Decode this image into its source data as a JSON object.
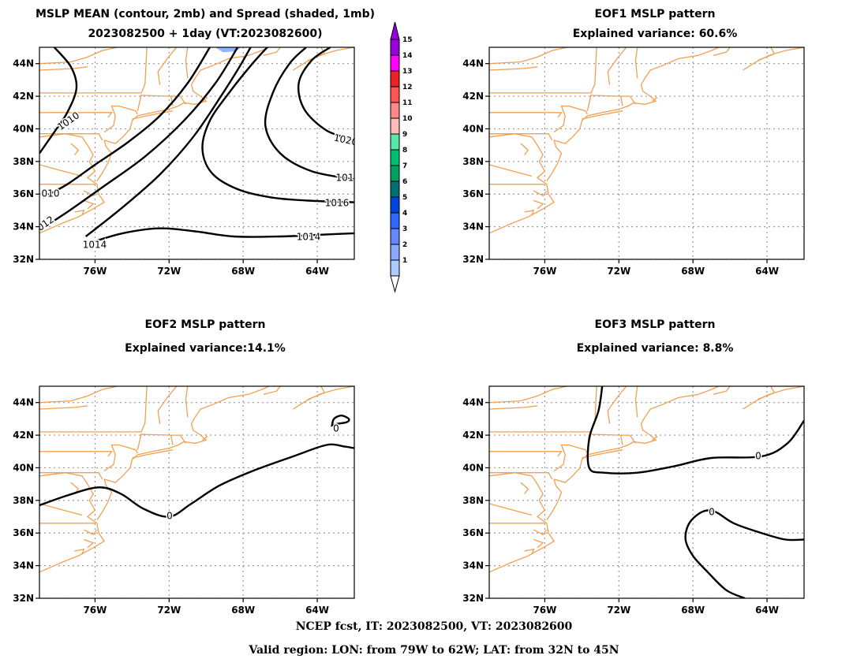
{
  "footer": {
    "line1": "NCEP fcst, IT: 2023082500, VT: 2023082600",
    "line2": "Valid region: LON: from 79W to 62W; LAT: from 32N to 45N"
  },
  "colors": {
    "coast": "#f0a050",
    "contour": "#000000",
    "grid": "#999999",
    "spread_shade": "#8ab8ff"
  },
  "colorbar": {
    "levels": [
      "1",
      "2",
      "3",
      "4",
      "5",
      "6",
      "7",
      "8",
      "9",
      "10",
      "11",
      "12",
      "13",
      "14",
      "15"
    ],
    "colors": [
      "#aaccff",
      "#88aaff",
      "#6688ff",
      "#3366ff",
      "#0044dd",
      "#007070",
      "#00a060",
      "#00c070",
      "#55e8a8",
      "#ffbbbb",
      "#ff8888",
      "#ff5555",
      "#ee2222",
      "#ff00ff",
      "#9900dd"
    ]
  },
  "chart_data": [
    {
      "type": "contour",
      "title": "MSLP MEAN (contour, 2mb) and Spread (shaded, 1mb)",
      "subtitle": "2023082500 + 1day (VT:2023082600)",
      "lon_range": [
        -79,
        -62
      ],
      "lat_range": [
        32,
        45
      ],
      "xticks": [
        "76W",
        "72W",
        "68W",
        "64W"
      ],
      "yticks": [
        "32N",
        "34N",
        "36N",
        "38N",
        "40N",
        "42N",
        "44N"
      ],
      "contour_labels": [
        "1010",
        "1020",
        "101",
        "010",
        "1016",
        "012",
        "1014",
        "1014"
      ],
      "contours": [
        {
          "level": 1010,
          "points": [
            [
              -79,
              38.5
            ],
            [
              -78.2,
              39.8
            ],
            [
              -77.5,
              41
            ],
            [
              -77,
              42.5
            ],
            [
              -77.3,
              43.8
            ],
            [
              -78.2,
              45
            ]
          ]
        },
        {
          "level": 1010,
          "points": [
            [
              -78.8,
              35.8
            ],
            [
              -77.5,
              36.6
            ],
            [
              -76,
              37.8
            ],
            [
              -74.2,
              39.2
            ],
            [
              -72.5,
              40.8
            ],
            [
              -71,
              42.8
            ],
            [
              -69.8,
              45
            ]
          ]
        },
        {
          "level": 1012,
          "points": [
            [
              -79,
              33.8
            ],
            [
              -77.5,
              34.9
            ],
            [
              -75.5,
              36.5
            ],
            [
              -73.3,
              38.3
            ],
            [
              -71.2,
              40.5
            ],
            [
              -69.5,
              42.8
            ],
            [
              -68.3,
              45
            ]
          ]
        },
        {
          "level": 1014,
          "points": [
            [
              -76.5,
              33.4
            ],
            [
              -74.5,
              35.2
            ],
            [
              -72.5,
              37.2
            ],
            [
              -70.7,
              39.5
            ],
            [
              -69.2,
              42
            ],
            [
              -68.2,
              43.8
            ],
            [
              -67.6,
              45
            ]
          ]
        },
        {
          "level": 1014,
          "points": [
            [
              -76.3,
              33
            ],
            [
              -74.5,
              33.6
            ],
            [
              -72.5,
              33.9
            ],
            [
              -70.5,
              33.7
            ],
            [
              -68.5,
              33.4
            ],
            [
              -66,
              33.4
            ],
            [
              -64,
              33.5
            ],
            [
              -62,
              33.6
            ]
          ]
        },
        {
          "level": 1016,
          "points": [
            [
              -62,
              35.5
            ],
            [
              -64.5,
              35.6
            ],
            [
              -66.5,
              35.8
            ],
            [
              -68.3,
              36.3
            ],
            [
              -69.7,
              37.3
            ],
            [
              -70.2,
              38.8
            ],
            [
              -69.8,
              40.5
            ],
            [
              -68.7,
              42.3
            ],
            [
              -67.5,
              44
            ],
            [
              -66.7,
              45
            ]
          ]
        },
        {
          "level": 1018,
          "points": [
            [
              -62,
              36.9
            ],
            [
              -64.3,
              37.4
            ],
            [
              -66,
              38.5
            ],
            [
              -66.8,
              40.2
            ],
            [
              -66.4,
              42.2
            ],
            [
              -65.5,
              44
            ],
            [
              -64.6,
              45
            ]
          ]
        },
        {
          "level": 1020,
          "points": [
            [
              -62.2,
              39.4
            ],
            [
              -63.5,
              39.9
            ],
            [
              -64.7,
              41.2
            ],
            [
              -65,
              42.8
            ],
            [
              -64.3,
              44.2
            ],
            [
              -63.3,
              45
            ]
          ]
        }
      ],
      "spread_shading": [
        {
          "level": 2,
          "points": [
            [
              -69.5,
              45
            ],
            [
              -69.1,
              44.7
            ],
            [
              -68.4,
              44.75
            ],
            [
              -68.1,
              45
            ]
          ]
        }
      ]
    },
    {
      "type": "contour",
      "title": "EOF1 MSLP pattern",
      "subtitle": "Explained variance: 60.6%",
      "lon_range": [
        -79,
        -62
      ],
      "lat_range": [
        32,
        45
      ],
      "xticks": [
        "76W",
        "72W",
        "68W",
        "64W"
      ],
      "yticks": [
        "32N",
        "34N",
        "36N",
        "38N",
        "40N",
        "42N",
        "44N"
      ],
      "contour_labels": [],
      "contours": []
    },
    {
      "type": "contour",
      "title": "EOF2 MSLP pattern",
      "subtitle": "Explained variance:14.1%",
      "lon_range": [
        -79,
        -62
      ],
      "lat_range": [
        32,
        45
      ],
      "xticks": [
        "76W",
        "72W",
        "68W",
        "64W"
      ],
      "yticks": [
        "32N",
        "34N",
        "36N",
        "38N",
        "40N",
        "42N",
        "44N"
      ],
      "contour_labels": [
        "0",
        "0"
      ],
      "contours": [
        {
          "level": 0,
          "points": [
            [
              -79,
              37.7
            ],
            [
              -77.5,
              38.3
            ],
            [
              -75.8,
              38.8
            ],
            [
              -74.6,
              38.4
            ],
            [
              -73.4,
              37.5
            ],
            [
              -72,
              37
            ],
            [
              -70.8,
              37.8
            ],
            [
              -69.3,
              38.9
            ],
            [
              -67.5,
              39.8
            ],
            [
              -65.3,
              40.7
            ],
            [
              -63.5,
              41.4
            ],
            [
              -62.5,
              41.3
            ],
            [
              -62,
              41.2
            ]
          ]
        },
        {
          "level": 0,
          "points": [
            [
              -63.2,
              42.6
            ],
            [
              -63.1,
              43.0
            ],
            [
              -62.7,
              43.2
            ],
            [
              -62.3,
              43.0
            ],
            [
              -62.4,
              42.8
            ],
            [
              -62.9,
              42.7
            ]
          ],
          "closed": true
        }
      ]
    },
    {
      "type": "contour",
      "title": "EOF3 MSLP pattern",
      "subtitle": "Explained variance: 8.8%",
      "lon_range": [
        -79,
        -62
      ],
      "lat_range": [
        32,
        45
      ],
      "xticks": [
        "76W",
        "72W",
        "68W",
        "64W"
      ],
      "yticks": [
        "32N",
        "34N",
        "36N",
        "38N",
        "40N",
        "42N",
        "44N"
      ],
      "contour_labels": [
        "0",
        "0"
      ],
      "contours": [
        {
          "level": 0,
          "points": [
            [
              -72.9,
              45
            ],
            [
              -73.1,
              43.5
            ],
            [
              -73.6,
              41.8
            ],
            [
              -73.6,
              40.0
            ],
            [
              -72.8,
              39.7
            ],
            [
              -71,
              39.7
            ],
            [
              -69,
              40.1
            ],
            [
              -67,
              40.6
            ],
            [
              -64.3,
              40.7
            ],
            [
              -62.9,
              41.5
            ],
            [
              -62,
              42.9
            ]
          ]
        },
        {
          "level": 0,
          "points": [
            [
              -62,
              35.6
            ],
            [
              -63,
              35.6
            ],
            [
              -64.3,
              36
            ],
            [
              -65.8,
              36.6
            ],
            [
              -66.8,
              37.3
            ],
            [
              -67.5,
              37.3
            ],
            [
              -68.2,
              36.6
            ],
            [
              -68.4,
              35.6
            ],
            [
              -68,
              34.6
            ],
            [
              -67.2,
              33.6
            ],
            [
              -66.2,
              32.5
            ],
            [
              -65.2,
              32
            ]
          ]
        }
      ]
    }
  ]
}
